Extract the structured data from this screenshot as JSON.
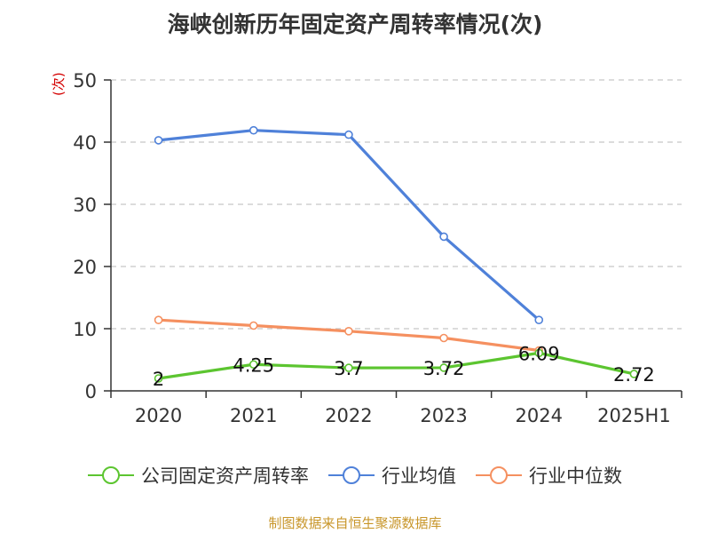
{
  "title": "海峡创新历年固定资产周转率情况(次)",
  "y_unit": "(次)",
  "source": "制图数据来自恒生聚源数据库",
  "chart_data": {
    "type": "line",
    "title": "海峡创新历年固定资产周转率情况(次)",
    "ylabel": "(次)",
    "xlabel": "",
    "categories": [
      "2020",
      "2021",
      "2022",
      "2023",
      "2024",
      "2025H1"
    ],
    "ylim": [
      0,
      50
    ],
    "yticks": [
      0,
      10,
      20,
      30,
      40,
      50
    ],
    "grid": true,
    "legend_position": "bottom",
    "series": [
      {
        "name": "公司固定资产周转率",
        "color": "#5cc530",
        "values": [
          2,
          4.25,
          3.7,
          3.72,
          6.09,
          2.72
        ],
        "labels": [
          "2",
          "4.25",
          "3.7",
          "3.72",
          "6.09",
          "2.72"
        ]
      },
      {
        "name": "行业均值",
        "color": "#4f81d9",
        "values": [
          40.3,
          41.9,
          41.2,
          24.8,
          11.4,
          null
        ]
      },
      {
        "name": "行业中位数",
        "color": "#f59060",
        "values": [
          11.4,
          10.5,
          9.6,
          8.5,
          6.5,
          null
        ]
      }
    ]
  }
}
